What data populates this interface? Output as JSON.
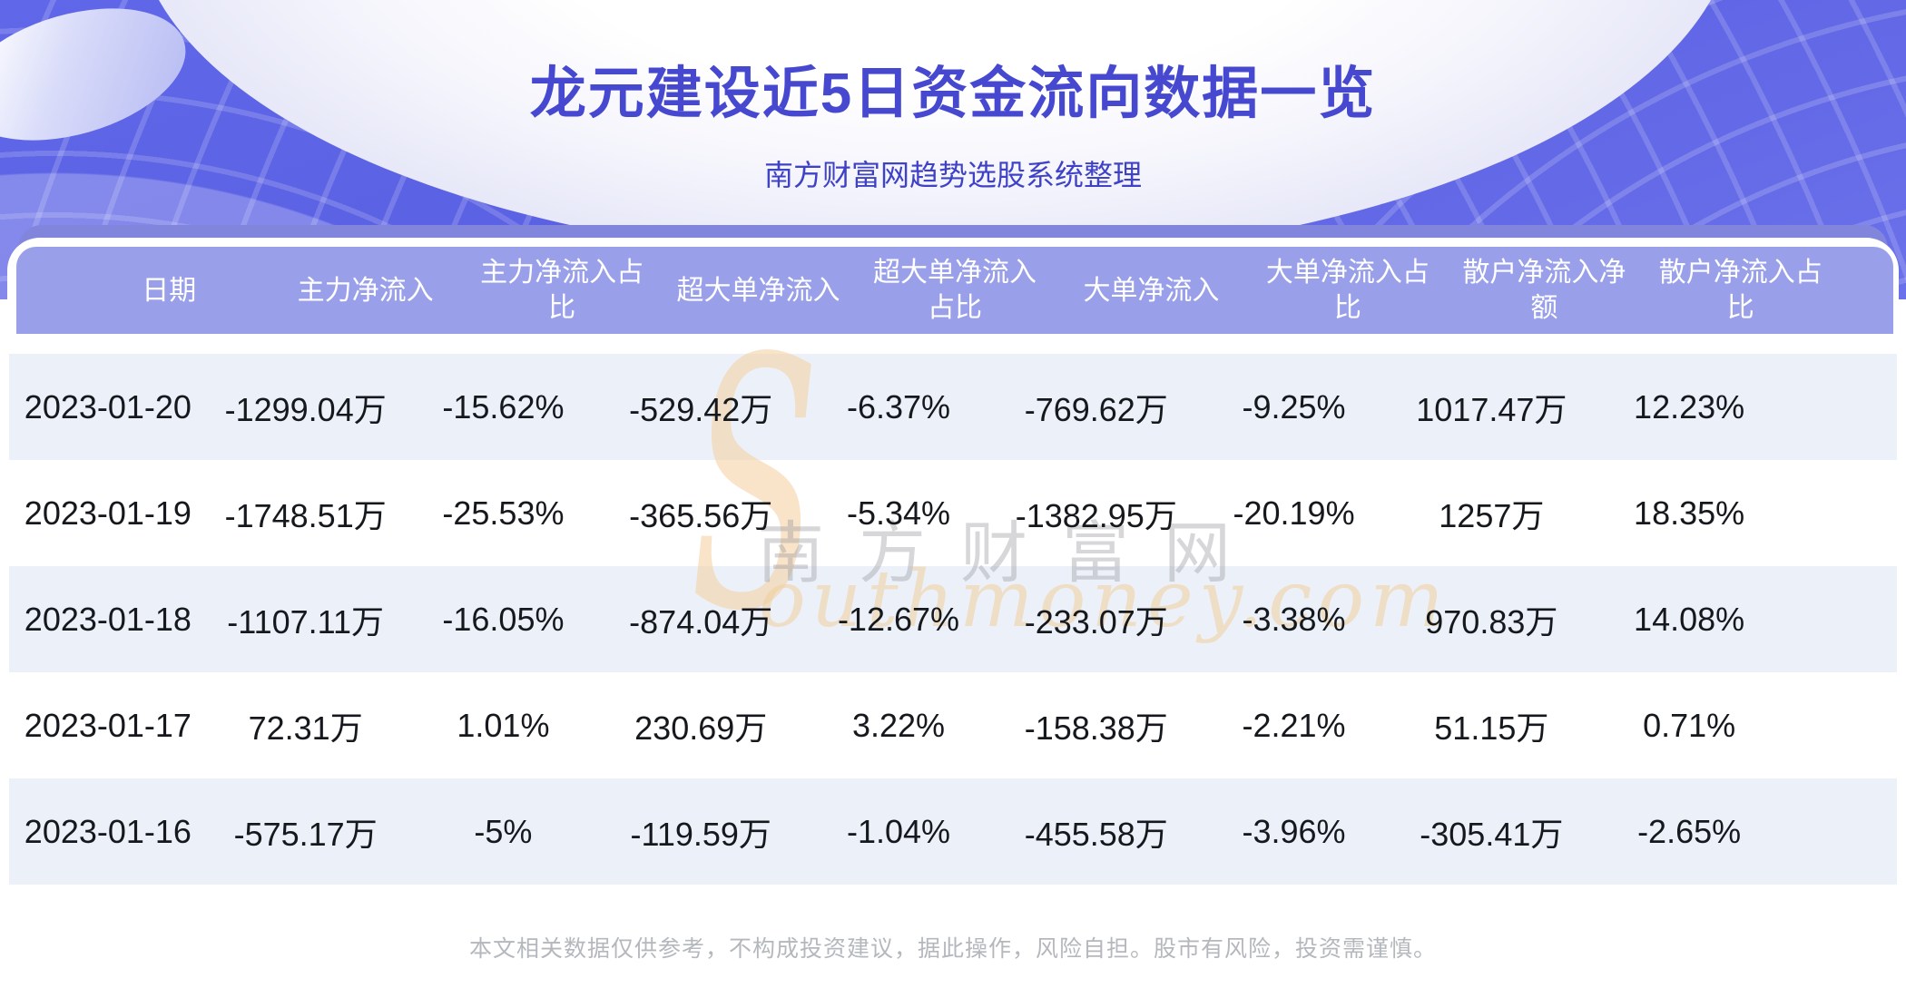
{
  "page": {
    "title": "龙元建设近5日资金流向数据一览",
    "subtitle": "南方财富网趋势选股系统整理"
  },
  "chart_data": {
    "type": "table",
    "title": "龙元建设近5日资金流向数据一览",
    "columns": [
      "日期",
      "主力净流入",
      "主力净流入占比",
      "超大单净流入",
      "超大单净流入占比",
      "大单净流入",
      "大单净流入占比",
      "散户净流入净额",
      "散户净流入占比"
    ],
    "rows": [
      [
        "2023-01-20",
        "-1299.04万",
        "-15.62%",
        "-529.42万",
        "-6.37%",
        "-769.62万",
        "-9.25%",
        "1017.47万",
        "12.23%"
      ],
      [
        "2023-01-19",
        "-1748.51万",
        "-25.53%",
        "-365.56万",
        "-5.34%",
        "-1382.95万",
        "-20.19%",
        "1257万",
        "18.35%"
      ],
      [
        "2023-01-18",
        "-1107.11万",
        "-16.05%",
        "-874.04万",
        "-12.67%",
        "-233.07万",
        "-3.38%",
        "970.83万",
        "14.08%"
      ],
      [
        "2023-01-17",
        "72.31万",
        "1.01%",
        "230.69万",
        "3.22%",
        "-158.38万",
        "-2.21%",
        "51.15万",
        "0.71%"
      ],
      [
        "2023-01-16",
        "-575.17万",
        "-5%",
        "-119.59万",
        "-1.04%",
        "-455.58万",
        "-3.96%",
        "-305.41万",
        "-2.65%"
      ]
    ]
  },
  "watermark": {
    "s": "S",
    "cn": "南方财富网",
    "en": "outhmoney.com"
  },
  "footer": {
    "disclaimer": "本文相关数据仅供参考，不构成投资建议，据此操作，风险自担。股市有风险，投资需谨慎。"
  },
  "colors": {
    "banner_purple": "#5B61E3",
    "card_bar": "#8186DC",
    "table_header_bg": "#99A0E9",
    "row_alt_bg": "#ECF1F9",
    "title_text": "#4649D0",
    "subtitle_text": "#3F42C6",
    "data_text": "#15181C",
    "footer_text": "#B4B8BD",
    "watermark_orange": "#F5CF9E",
    "watermark_gray": "#97979D"
  }
}
